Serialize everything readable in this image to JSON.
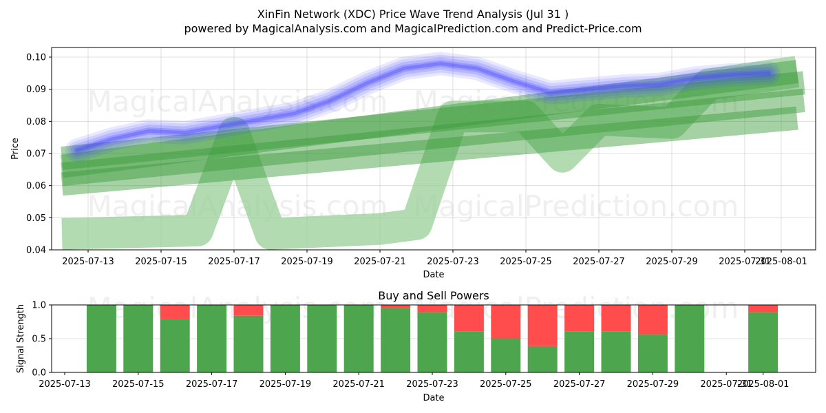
{
  "title_line1": "XinFin Network (XDC) Price Wave Trend Analysis (Jul 31 )",
  "title_line2": "powered by MagicalAnalysis.com and MagicalPrediction.com and Predict-Price.com",
  "watermarks": [
    "MagicalAnalysis.com",
    "MagicalPrediction.com"
  ],
  "colors": {
    "buy": "#4da64d",
    "sell": "#ff4d4d",
    "wave_blue": "#4444ff",
    "trend_green": "#3a9a3a"
  },
  "chart_data": [
    {
      "type": "area",
      "xlabel": "Date",
      "ylabel": "Price",
      "ylim": [
        0.04,
        0.103
      ],
      "yticks": [
        "0.04",
        "0.05",
        "0.06",
        "0.07",
        "0.08",
        "0.09",
        "0.10"
      ],
      "xticks": [
        "2025-07-13",
        "2025-07-15",
        "2025-07-17",
        "2025-07-19",
        "2025-07-21",
        "2025-07-23",
        "2025-07-25",
        "2025-07-27",
        "2025-07-29",
        "2025-07-31",
        "2025-08-01"
      ],
      "grid": true,
      "price_wave": {
        "dates": [
          "2025-07-13",
          "2025-07-14",
          "2025-07-15",
          "2025-07-16",
          "2025-07-17",
          "2025-07-18",
          "2025-07-19",
          "2025-07-20",
          "2025-07-21",
          "2025-07-22",
          "2025-07-23",
          "2025-07-24",
          "2025-07-25",
          "2025-07-26",
          "2025-07-27",
          "2025-07-28",
          "2025-07-29",
          "2025-07-30",
          "2025-07-31",
          "2025-08-01"
        ],
        "values": [
          0.071,
          0.0745,
          0.077,
          0.0765,
          0.0785,
          0.0805,
          0.0825,
          0.0865,
          0.092,
          0.0965,
          0.098,
          0.0965,
          0.0925,
          0.089,
          0.09,
          0.091,
          0.0915,
          0.0935,
          0.0945,
          0.095
        ]
      },
      "trend_bands": [
        {
          "name": "",
          "start": [
            "2025-07-12",
            0.066
          ],
          "end": [
            "2025-08-01",
            0.0955
          ]
        },
        {
          "name": "",
          "start": [
            "2025-07-12",
            0.0635
          ],
          "end": [
            "2025-08-01",
            0.0865
          ]
        },
        {
          "name": "",
          "start": [
            "2025-07-12",
            0.0605
          ],
          "end": [
            "2025-08-01",
            0.081
          ]
        },
        {
          "name": "",
          "start": [
            "2025-07-12",
            0.0685
          ],
          "end": [
            "2025-08-01",
            0.092
          ]
        }
      ],
      "wave_pattern": {
        "dates": [
          "2025-07-12",
          "2025-07-16",
          "2025-07-17",
          "2025-07-18",
          "2025-07-21",
          "2025-07-22",
          "2025-07-23",
          "2025-07-25",
          "2025-07-26",
          "2025-07-27",
          "2025-07-29",
          "2025-07-30",
          "2025-08-01"
        ],
        "values": [
          0.045,
          0.046,
          0.0765,
          0.045,
          0.0465,
          0.048,
          0.0815,
          0.0815,
          0.069,
          0.0805,
          0.0795,
          0.0915,
          0.0955
        ]
      }
    },
    {
      "type": "bar",
      "title": "Buy and Sell Powers",
      "xlabel": "Date",
      "ylabel": "Signal Strength",
      "ylim": [
        0,
        1
      ],
      "yticks": [
        "0.0",
        "0.5",
        "1.0"
      ],
      "xticks": [
        "2025-07-13",
        "2025-07-15",
        "2025-07-17",
        "2025-07-19",
        "2025-07-21",
        "2025-07-23",
        "2025-07-25",
        "2025-07-27",
        "2025-07-29",
        "2025-07-31",
        "2025-08-01"
      ],
      "dates": [
        "2025-07-14",
        "2025-07-15",
        "2025-07-16",
        "2025-07-17",
        "2025-07-18",
        "2025-07-19",
        "2025-07-20",
        "2025-07-21",
        "2025-07-22",
        "2025-07-23",
        "2025-07-24",
        "2025-07-25",
        "2025-07-26",
        "2025-07-27",
        "2025-07-28",
        "2025-07-29",
        "2025-07-30",
        "2025-08-01"
      ],
      "series": [
        {
          "name": "",
          "values": [
            1,
            1,
            0.79,
            1,
            0.84,
            1,
            1,
            1,
            0.95,
            0.89,
            0.61,
            0.5,
            0.39,
            0.61,
            0.61,
            0.56,
            1,
            0.89
          ]
        },
        {
          "name": "",
          "values": [
            0,
            0,
            0.21,
            0,
            0.16,
            0,
            0,
            0,
            0.05,
            0.11,
            0.39,
            0.5,
            0.61,
            0.39,
            0.39,
            0.44,
            0,
            0.11
          ]
        }
      ]
    }
  ]
}
